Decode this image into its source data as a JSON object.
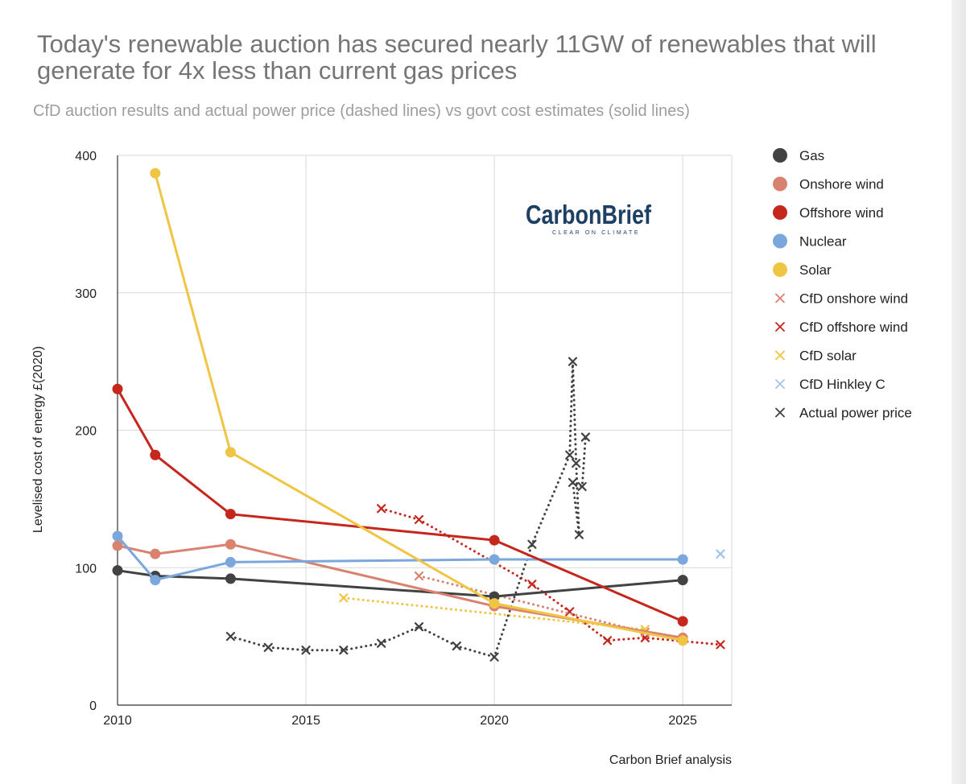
{
  "title": "Today's renewable auction has secured nearly 11GW of renewables that will generate for 4x less than current gas prices",
  "subtitle": "CfD auction results and actual power price (dashed lines) vs govt cost estimates (solid lines)",
  "source": "Carbon Brief analysis",
  "logo": {
    "name": "CarbonBrief",
    "tagline": "CLEAR ON CLIMATE"
  },
  "chart_data": {
    "type": "line",
    "xlabel": "",
    "ylabel": "Levelised cost of energy £(2020)",
    "xlim": [
      2010,
      2026.3
    ],
    "ylim": [
      0,
      400
    ],
    "x_ticks": [
      2010,
      2015,
      2020,
      2025
    ],
    "y_ticks": [
      0,
      100,
      200,
      300,
      400
    ],
    "grid": true,
    "legend_position": "right",
    "series": [
      {
        "name": "Gas",
        "style": "solid",
        "marker": "dot",
        "color": "#424242",
        "points": [
          [
            2010,
            98
          ],
          [
            2011,
            94
          ],
          [
            2013,
            92
          ],
          [
            2020,
            79
          ],
          [
            2025,
            91
          ]
        ]
      },
      {
        "name": "Onshore wind",
        "style": "solid",
        "marker": "dot",
        "color": "#d98270",
        "points": [
          [
            2010,
            116
          ],
          [
            2011,
            110
          ],
          [
            2013,
            117
          ],
          [
            2020,
            72
          ],
          [
            2025,
            49
          ]
        ]
      },
      {
        "name": "Offshore wind",
        "style": "solid",
        "marker": "dot",
        "color": "#c5271d",
        "points": [
          [
            2010,
            230
          ],
          [
            2011,
            182
          ],
          [
            2013,
            139
          ],
          [
            2020,
            120
          ],
          [
            2025,
            61
          ]
        ]
      },
      {
        "name": "Nuclear",
        "style": "solid",
        "marker": "dot",
        "color": "#7ba7dd",
        "points": [
          [
            2010,
            123
          ],
          [
            2011,
            91
          ],
          [
            2013,
            104
          ],
          [
            2020,
            106
          ],
          [
            2025,
            106
          ]
        ]
      },
      {
        "name": "Solar",
        "style": "solid",
        "marker": "dot",
        "color": "#f0c544",
        "points": [
          [
            2011,
            387
          ],
          [
            2013,
            184
          ],
          [
            2020,
            74
          ],
          [
            2025,
            47
          ]
        ]
      },
      {
        "name": "CfD onshore wind",
        "style": "dotted",
        "marker": "x",
        "color": "#d98270",
        "points": [
          [
            2018,
            94
          ],
          [
            2024,
            53
          ]
        ]
      },
      {
        "name": "CfD offshore wind",
        "style": "dotted",
        "marker": "x",
        "color": "#c5271d",
        "points": [
          [
            2017,
            143
          ],
          [
            2018,
            135
          ],
          [
            2021,
            88
          ],
          [
            2022,
            68
          ],
          [
            2023,
            47
          ],
          [
            2024,
            49
          ],
          [
            2026,
            44
          ]
        ]
      },
      {
        "name": "CfD solar",
        "style": "dotted",
        "marker": "x",
        "color": "#f0c544",
        "points": [
          [
            2016,
            78
          ],
          [
            2024,
            55
          ]
        ]
      },
      {
        "name": "CfD Hinkley C",
        "style": "dotted",
        "marker": "x",
        "color": "#a4c4ea",
        "points": [
          [
            2026,
            110
          ]
        ]
      },
      {
        "name": "Actual power price",
        "style": "dotted",
        "marker": "x",
        "color": "#424242",
        "points": [
          [
            2013,
            50
          ],
          [
            2014,
            42
          ],
          [
            2015,
            40
          ],
          [
            2016,
            40
          ],
          [
            2017,
            45
          ],
          [
            2018,
            57
          ],
          [
            2019,
            43
          ],
          [
            2020,
            35
          ],
          [
            2021,
            117
          ],
          [
            2022,
            182
          ],
          [
            2022.08,
            250
          ],
          [
            2022.17,
            176
          ],
          [
            2022.25,
            124
          ],
          [
            2022.08,
            162
          ],
          [
            2022.33,
            159
          ],
          [
            2022.42,
            195
          ]
        ]
      }
    ]
  }
}
